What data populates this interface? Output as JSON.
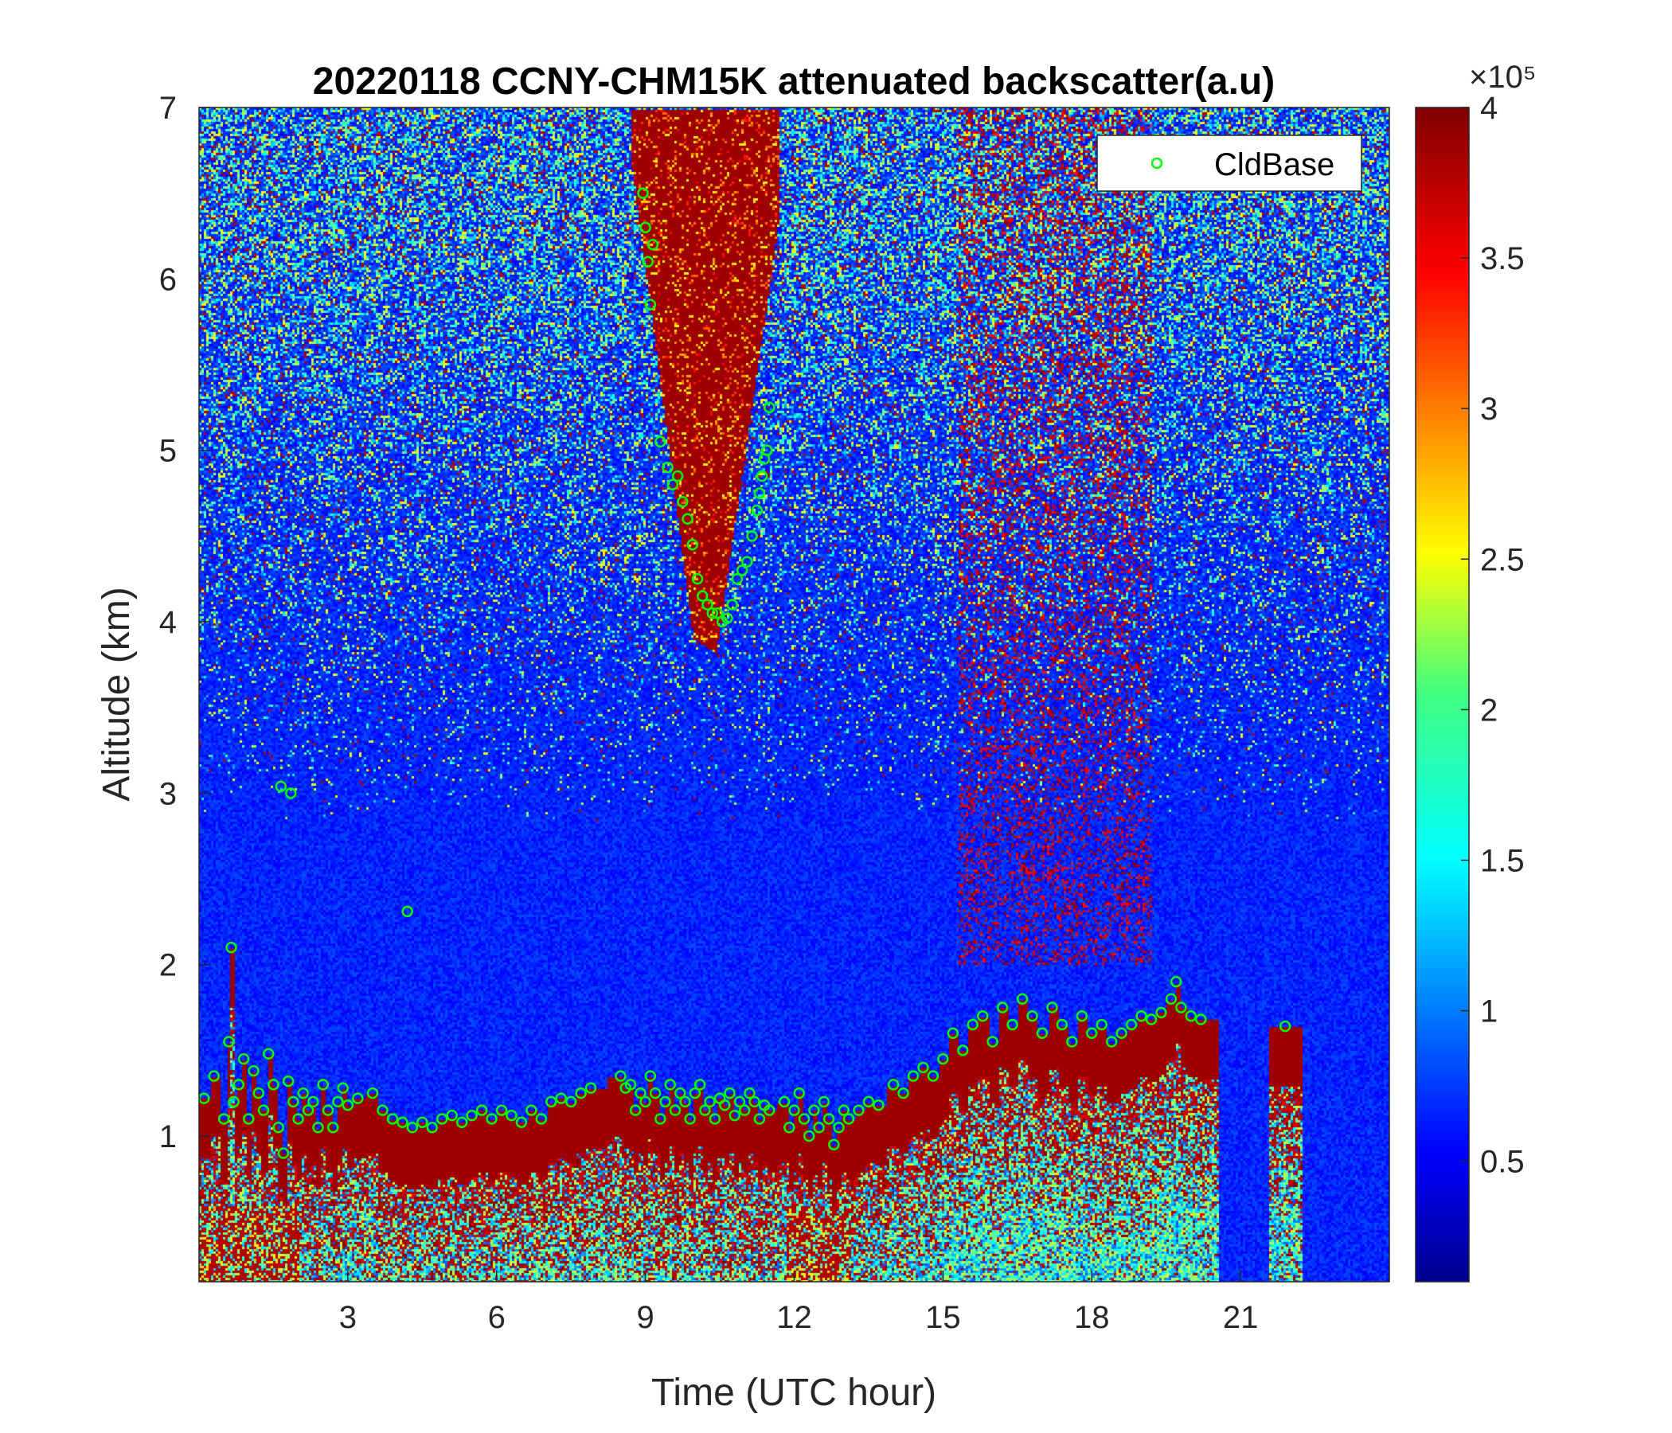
{
  "chart_data": {
    "type": "heatmap",
    "title": "20220118 CCNY-CHM15K attenuated backscatter(a.u)",
    "xlabel": "Time (UTC hour)",
    "ylabel": "Altitude (km)",
    "xlim": [
      0,
      24
    ],
    "ylim": [
      0.15,
      7
    ],
    "x_ticks": [
      3,
      6,
      9,
      12,
      15,
      18,
      21
    ],
    "y_ticks": [
      1,
      2,
      3,
      4,
      5,
      6,
      7
    ],
    "colormap": "jet",
    "colorbar": {
      "range": [
        0.1,
        4
      ],
      "ticks": [
        0.5,
        1,
        1.5,
        2,
        2.5,
        3,
        3.5,
        4
      ],
      "tick_labels": [
        "0.5",
        "1",
        "1.5",
        "2",
        "2.5",
        "3",
        "3.5",
        "4"
      ],
      "exponent_label": "×10⁵",
      "unit_multiplier": 100000
    },
    "legend": {
      "location": "top-right",
      "entries": [
        {
          "name": "CldBase",
          "marker": "open-circle",
          "color": "#00ff00"
        }
      ]
    },
    "cloud_base_series": {
      "name": "CldBase",
      "points": [
        [
          0.1,
          1.22
        ],
        [
          0.3,
          1.35
        ],
        [
          0.5,
          1.1
        ],
        [
          0.6,
          1.55
        ],
        [
          0.7,
          1.2
        ],
        [
          0.8,
          1.3
        ],
        [
          0.9,
          1.45
        ],
        [
          1.0,
          1.1
        ],
        [
          1.1,
          1.38
        ],
        [
          1.2,
          1.25
        ],
        [
          1.3,
          1.15
        ],
        [
          1.4,
          1.48
        ],
        [
          1.5,
          1.3
        ],
        [
          1.6,
          1.05
        ],
        [
          1.7,
          0.9
        ],
        [
          1.8,
          1.32
        ],
        [
          1.9,
          1.2
        ],
        [
          2.0,
          1.1
        ],
        [
          2.1,
          1.25
        ],
        [
          2.2,
          1.15
        ],
        [
          2.3,
          1.2
        ],
        [
          2.4,
          1.05
        ],
        [
          2.5,
          1.3
        ],
        [
          2.6,
          1.15
        ],
        [
          2.7,
          1.05
        ],
        [
          2.8,
          1.2
        ],
        [
          2.9,
          1.28
        ],
        [
          3.0,
          1.18
        ],
        [
          3.2,
          1.22
        ],
        [
          3.5,
          1.25
        ],
        [
          3.7,
          1.15
        ],
        [
          3.9,
          1.1
        ],
        [
          4.1,
          1.08
        ],
        [
          4.3,
          1.05
        ],
        [
          4.5,
          1.08
        ],
        [
          4.7,
          1.05
        ],
        [
          4.9,
          1.1
        ],
        [
          5.1,
          1.12
        ],
        [
          5.3,
          1.08
        ],
        [
          5.5,
          1.12
        ],
        [
          5.7,
          1.15
        ],
        [
          5.9,
          1.1
        ],
        [
          6.1,
          1.15
        ],
        [
          6.3,
          1.12
        ],
        [
          6.5,
          1.08
        ],
        [
          6.7,
          1.15
        ],
        [
          6.9,
          1.1
        ],
        [
          7.1,
          1.2
        ],
        [
          7.3,
          1.22
        ],
        [
          7.5,
          1.2
        ],
        [
          7.7,
          1.25
        ],
        [
          7.9,
          1.28
        ],
        [
          8.5,
          1.35
        ],
        [
          8.6,
          1.28
        ],
        [
          8.7,
          1.3
        ],
        [
          8.8,
          1.15
        ],
        [
          8.9,
          1.25
        ],
        [
          9.0,
          1.2
        ],
        [
          9.1,
          1.35
        ],
        [
          9.2,
          1.25
        ],
        [
          9.3,
          1.1
        ],
        [
          9.4,
          1.2
        ],
        [
          9.5,
          1.3
        ],
        [
          9.6,
          1.15
        ],
        [
          9.7,
          1.25
        ],
        [
          9.8,
          1.2
        ],
        [
          9.9,
          1.1
        ],
        [
          10.0,
          1.25
        ],
        [
          10.1,
          1.3
        ],
        [
          10.2,
          1.15
        ],
        [
          10.3,
          1.2
        ],
        [
          10.4,
          1.1
        ],
        [
          10.5,
          1.22
        ],
        [
          10.6,
          1.18
        ],
        [
          10.7,
          1.25
        ],
        [
          10.8,
          1.12
        ],
        [
          10.9,
          1.2
        ],
        [
          11.0,
          1.15
        ],
        [
          11.1,
          1.25
        ],
        [
          11.2,
          1.2
        ],
        [
          11.3,
          1.1
        ],
        [
          11.4,
          1.18
        ],
        [
          11.5,
          1.15
        ],
        [
          11.8,
          1.2
        ],
        [
          11.9,
          1.05
        ],
        [
          12.0,
          1.15
        ],
        [
          12.1,
          1.25
        ],
        [
          12.2,
          1.1
        ],
        [
          12.3,
          1.0
        ],
        [
          12.4,
          1.15
        ],
        [
          12.5,
          1.05
        ],
        [
          12.6,
          1.2
        ],
        [
          12.7,
          1.1
        ],
        [
          12.8,
          0.95
        ],
        [
          12.9,
          1.05
        ],
        [
          13.0,
          1.15
        ],
        [
          13.1,
          1.1
        ],
        [
          13.3,
          1.15
        ],
        [
          13.5,
          1.2
        ],
        [
          13.7,
          1.18
        ],
        [
          14.0,
          1.3
        ],
        [
          14.2,
          1.25
        ],
        [
          14.4,
          1.35
        ],
        [
          14.6,
          1.4
        ],
        [
          14.8,
          1.35
        ],
        [
          15.0,
          1.45
        ],
        [
          15.2,
          1.6
        ],
        [
          15.4,
          1.5
        ],
        [
          15.6,
          1.65
        ],
        [
          15.8,
          1.7
        ],
        [
          16.0,
          1.55
        ],
        [
          16.2,
          1.75
        ],
        [
          16.4,
          1.65
        ],
        [
          16.6,
          1.8
        ],
        [
          16.8,
          1.7
        ],
        [
          17.0,
          1.6
        ],
        [
          17.2,
          1.75
        ],
        [
          17.4,
          1.65
        ],
        [
          17.6,
          1.55
        ],
        [
          17.8,
          1.7
        ],
        [
          18.0,
          1.6
        ],
        [
          18.2,
          1.65
        ],
        [
          18.4,
          1.55
        ],
        [
          18.6,
          1.6
        ],
        [
          18.8,
          1.65
        ],
        [
          19.0,
          1.7
        ],
        [
          19.2,
          1.68
        ],
        [
          19.4,
          1.72
        ],
        [
          19.6,
          1.8
        ],
        [
          19.7,
          1.9
        ],
        [
          19.8,
          1.75
        ],
        [
          20.0,
          1.7
        ],
        [
          20.2,
          1.68
        ],
        [
          21.9,
          1.64
        ],
        [
          0.65,
          2.1
        ],
        [
          1.65,
          3.04
        ],
        [
          1.85,
          3.0
        ],
        [
          4.2,
          2.31
        ],
        [
          8.95,
          6.5
        ],
        [
          9.0,
          6.3
        ],
        [
          9.05,
          6.1
        ],
        [
          9.1,
          5.85
        ],
        [
          9.15,
          6.2
        ],
        [
          9.3,
          5.05
        ],
        [
          9.45,
          4.9
        ],
        [
          9.55,
          4.8
        ],
        [
          9.65,
          4.85
        ],
        [
          9.75,
          4.7
        ],
        [
          9.85,
          4.6
        ],
        [
          9.95,
          4.45
        ],
        [
          10.05,
          4.25
        ],
        [
          10.15,
          4.15
        ],
        [
          10.25,
          4.1
        ],
        [
          10.35,
          4.05
        ],
        [
          10.45,
          4.05
        ],
        [
          10.55,
          4.0
        ],
        [
          10.65,
          4.02
        ],
        [
          10.75,
          4.1
        ],
        [
          10.85,
          4.25
        ],
        [
          10.95,
          4.3
        ],
        [
          11.05,
          4.35
        ],
        [
          11.15,
          4.5
        ],
        [
          11.25,
          4.65
        ],
        [
          11.35,
          4.85
        ],
        [
          11.45,
          5.0
        ],
        [
          11.5,
          5.25
        ],
        [
          11.4,
          4.95
        ],
        [
          11.3,
          4.75
        ]
      ]
    }
  }
}
